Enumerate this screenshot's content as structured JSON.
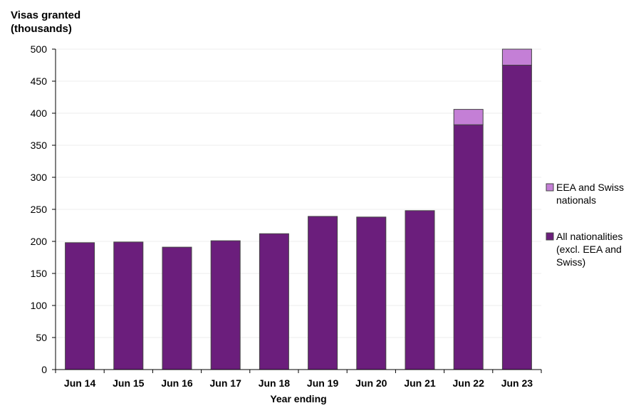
{
  "chart_data": {
    "type": "bar",
    "stacked": true,
    "ylabel_lines": [
      "Visas granted",
      "(thousands)"
    ],
    "xlabel": "Year ending",
    "ylim": [
      0,
      500
    ],
    "yticks": [
      0,
      50,
      100,
      150,
      200,
      250,
      300,
      350,
      400,
      450,
      500
    ],
    "grid": false,
    "legend_position": "right",
    "categories": [
      "Jun 14",
      "Jun 15",
      "Jun 16",
      "Jun 17",
      "Jun 18",
      "Jun 19",
      "Jun 20",
      "Jun 21",
      "Jun 22",
      "Jun 23"
    ],
    "series": [
      {
        "name": "All nationalities (excl. EEA and Swiss)",
        "legend_lines": [
          "All nationalities",
          "(excl. EEA and",
          "Swiss)"
        ],
        "color": "#6b1e7c",
        "values": [
          198,
          199,
          191,
          201,
          212,
          239,
          238,
          248,
          382,
          475
        ]
      },
      {
        "name": "EEA and Swiss nationals",
        "legend_lines": [
          "EEA and Swiss",
          "nationals"
        ],
        "color": "#c47fd6",
        "values": [
          0,
          0,
          0,
          0,
          0,
          0,
          0,
          0,
          24,
          25
        ]
      }
    ]
  }
}
